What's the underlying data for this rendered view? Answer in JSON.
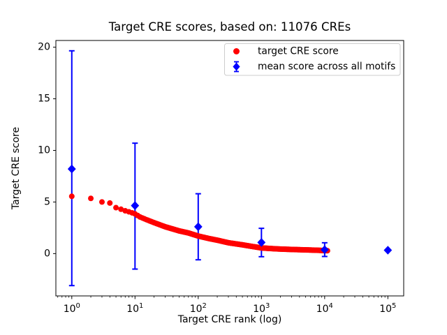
{
  "figure": {
    "title": "Target CRE scores, based on: 11076 CREs",
    "xlabel": "Target CRE rank (log)",
    "ylabel": "Target CRE score",
    "background": "#ffffff",
    "spine_color": "#000000"
  },
  "legend": {
    "items": [
      {
        "label": "target CRE score",
        "marker": "circle",
        "color": "#ff0000"
      },
      {
        "label": "mean score across all motifs",
        "marker": "diamond-errorbar",
        "color": "#0000ff"
      }
    ]
  },
  "chart_data": {
    "type": "scatter",
    "title": "Target CRE scores, based on: 11076 CREs",
    "xlabel": "Target CRE rank (log)",
    "ylabel": "Target CRE score",
    "xscale": "log",
    "xlim": [
      0.56,
      178000
    ],
    "ylim": [
      -4.1,
      20.65
    ],
    "yticks": [
      0,
      5,
      10,
      15,
      20
    ],
    "xtick_exponents": [
      0,
      1,
      2,
      3,
      4,
      5
    ],
    "grid": false,
    "legend_position": "upper right",
    "series": [
      {
        "name": "target CRE score",
        "type": "scatter-curve",
        "color": "#ff0000",
        "marker": "circle",
        "marker_radius_px": 4,
        "num_points": 11076,
        "anchors_rank_score": [
          [
            1,
            5.55
          ],
          [
            2,
            5.35
          ],
          [
            3,
            5.0
          ],
          [
            4,
            4.9
          ],
          [
            5,
            4.45
          ],
          [
            6,
            4.3
          ],
          [
            7,
            4.15
          ],
          [
            8,
            4.05
          ],
          [
            9,
            3.95
          ],
          [
            10,
            3.85
          ],
          [
            12,
            3.55
          ],
          [
            15,
            3.3
          ],
          [
            20,
            3.0
          ],
          [
            30,
            2.6
          ],
          [
            50,
            2.2
          ],
          [
            70,
            2.0
          ],
          [
            100,
            1.7
          ],
          [
            150,
            1.45
          ],
          [
            200,
            1.3
          ],
          [
            300,
            1.05
          ],
          [
            500,
            0.85
          ],
          [
            700,
            0.7
          ],
          [
            1000,
            0.55
          ],
          [
            1500,
            0.48
          ],
          [
            2000,
            0.44
          ],
          [
            3000,
            0.4
          ],
          [
            5000,
            0.36
          ],
          [
            8000,
            0.32
          ],
          [
            11076,
            0.28
          ]
        ]
      },
      {
        "name": "mean score across all motifs",
        "type": "errorbar",
        "color": "#0000ff",
        "marker": "diamond",
        "points": [
          {
            "x": 1,
            "mean": 8.2,
            "lo": -3.1,
            "hi": 19.65
          },
          {
            "x": 10,
            "mean": 4.65,
            "lo": -1.5,
            "hi": 10.7
          },
          {
            "x": 100,
            "mean": 2.6,
            "lo": -0.6,
            "hi": 5.8
          },
          {
            "x": 1000,
            "mean": 1.08,
            "lo": -0.3,
            "hi": 2.45
          },
          {
            "x": 10000,
            "mean": 0.38,
            "lo": -0.28,
            "hi": 1.05
          },
          {
            "x": 100000,
            "mean": 0.33,
            "lo": 0.33,
            "hi": 0.33
          }
        ]
      }
    ]
  }
}
